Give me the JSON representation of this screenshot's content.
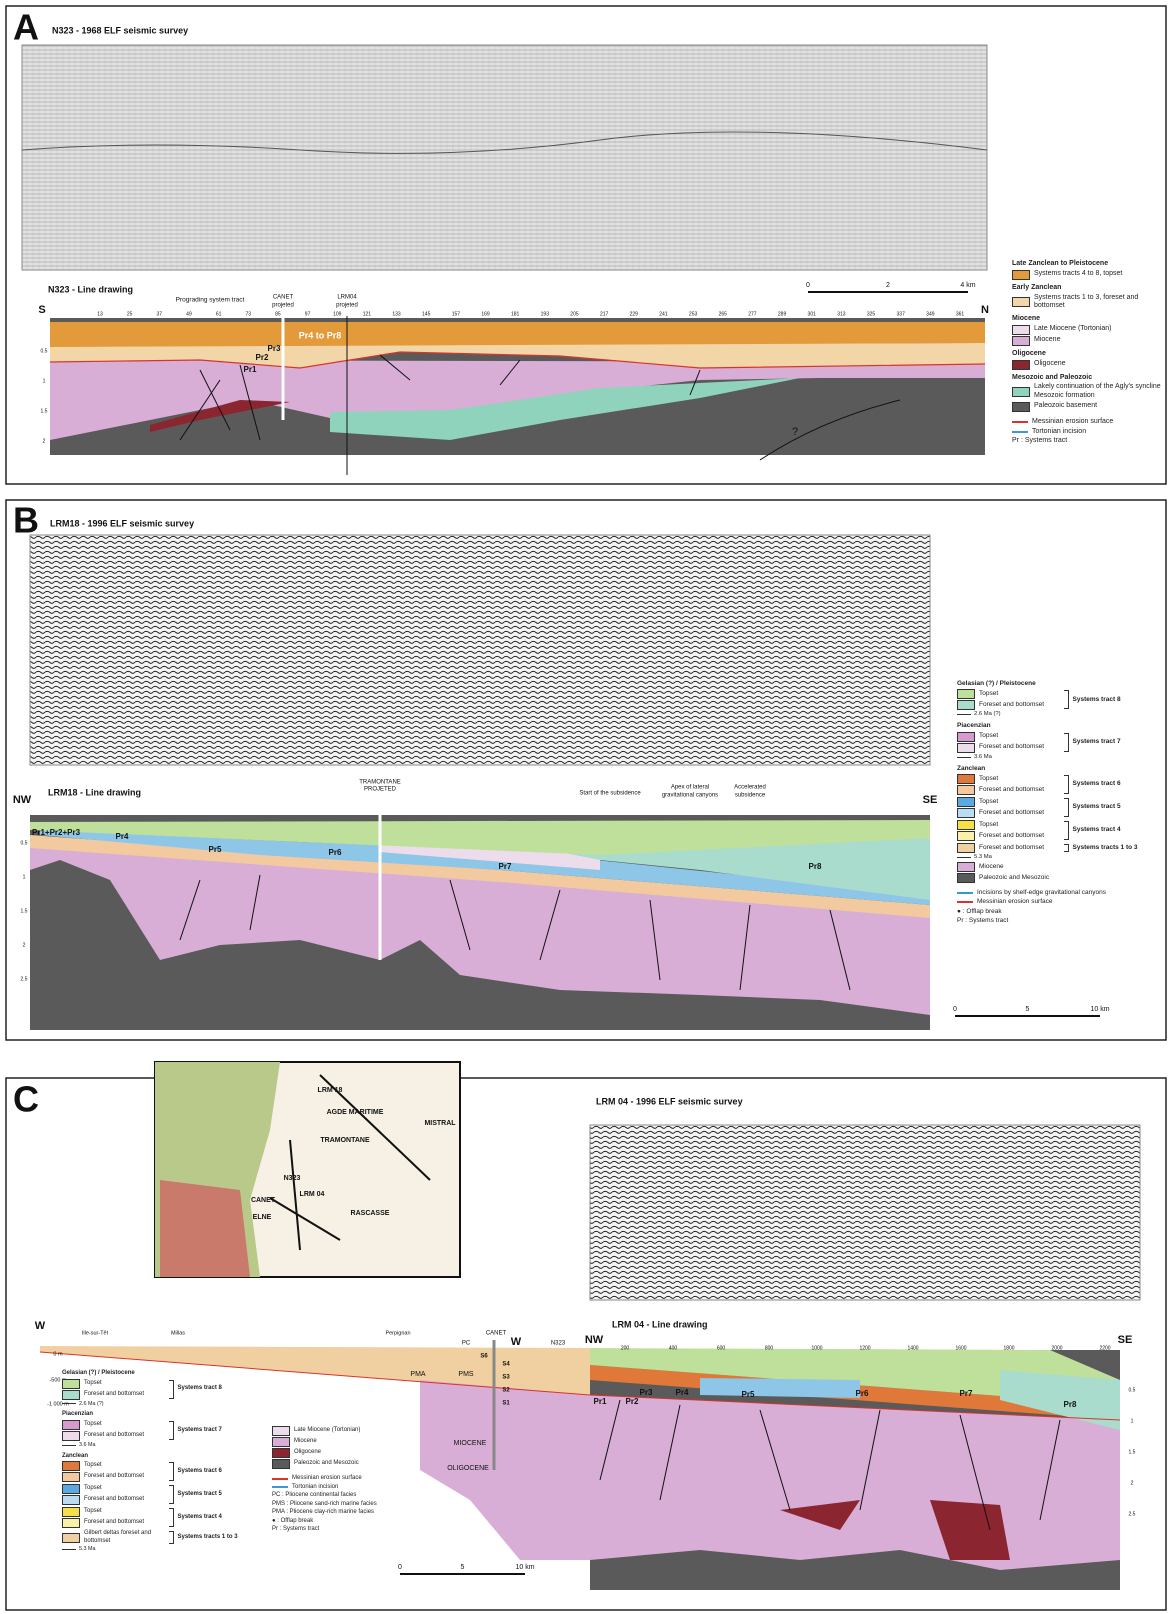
{
  "panels": [
    {
      "letter": "A",
      "seismic_title": "N323 - 1968 ELF seismic survey",
      "drawing_title": "N323 - Line drawing",
      "ends": [
        "S",
        "N"
      ],
      "annotations": [
        "Prograding system tract",
        "CANET",
        "projeted",
        "LRM04",
        "projeted",
        "Pr4 to Pr8",
        "Pr3",
        "Pr2",
        "Pr1",
        "?"
      ],
      "shotpoints": [
        "13",
        "25",
        "37",
        "49",
        "61",
        "73",
        "85",
        "97",
        "109",
        "121",
        "133",
        "145",
        "157",
        "169",
        "181",
        "193",
        "205",
        "217",
        "229",
        "241",
        "253",
        "265",
        "277",
        "289",
        "301",
        "313",
        "325",
        "337",
        "349",
        "361"
      ],
      "depths": [
        "0.5",
        "1",
        "1.5",
        "2"
      ],
      "scale": [
        "0",
        "2",
        "4 km"
      ],
      "legend": {
        "groups": [
          {
            "heading": "Late Zanclean to Pleistocene",
            "items": [
              {
                "label": "Systems tracts 4 to 8, topset",
                "color": "#e39a3b"
              }
            ]
          },
          {
            "heading": "Early Zanclean",
            "items": [
              {
                "label": "Systems tracts 1 to 3, foreset and bottomset",
                "color": "#f3d6a8"
              }
            ]
          },
          {
            "heading": "Miocene",
            "items": [
              {
                "label": "Late Miocene (Tortonian)",
                "color": "#ecdcec"
              },
              {
                "label": "Miocene",
                "color": "#d8aed6"
              }
            ]
          },
          {
            "heading": "Oligocene",
            "items": [
              {
                "label": "Oligocene",
                "color": "#8b2530"
              }
            ]
          },
          {
            "heading": "Mesozoic and Paleozoic",
            "items": [
              {
                "label": "Lakely continuation of the Agly's syncline Mesozoic formation",
                "color": "#8fd3bd"
              },
              {
                "label": "Paleozoic basement",
                "color": "#5a5a5a"
              }
            ]
          }
        ],
        "notes": [
          {
            "label": "Messinian erosion surface",
            "color": "#d9342b"
          },
          {
            "label": "Tortonian incision",
            "color": "#3a9ad9"
          },
          {
            "label": "Pr : Systems tract"
          }
        ]
      }
    },
    {
      "letter": "B",
      "seismic_title": "LRM18 - 1996  ELF seismic survey",
      "drawing_title": "LRM18 - Line drawing",
      "ends": [
        "NW",
        "SE"
      ],
      "annotations": [
        "TRAMONTANE",
        "PROJETED",
        "Start of the subsidence",
        "Apex of lateral",
        "gravitational canyons",
        "Accelerated",
        "subsidence",
        "Pr1+Pr2+Pr3",
        "Pr4",
        "Pr5",
        "Pr6",
        "Pr7",
        "Pr8"
      ],
      "depths": [
        "0.5",
        "1",
        "1.5",
        "2",
        "2.5"
      ],
      "scale": [
        "0",
        "5",
        "10 km"
      ],
      "legend": {
        "groups": [
          {
            "heading": "Gelasian (?) / Pleistocene",
            "tracts": [
              {
                "name": "Systems tract 8",
                "items": [
                  {
                    "label": "Topset",
                    "color": "#bfe09a"
                  },
                  {
                    "label": "Foreset and bottomset",
                    "color": "#a9dccd"
                  }
                ]
              }
            ],
            "age": "2.6 Ma (?)"
          },
          {
            "heading": "Piacenzian",
            "tracts": [
              {
                "name": "Systems tract 7",
                "items": [
                  {
                    "label": "Topset",
                    "color": "#d79ad0"
                  },
                  {
                    "label": "Foreset and bottomset",
                    "color": "#ecdcec"
                  }
                ]
              }
            ],
            "age": "3.6 Ma"
          },
          {
            "heading": "Zanclean",
            "tracts": [
              {
                "name": "Systems tract 6",
                "items": [
                  {
                    "label": "Topset",
                    "color": "#e0783a"
                  },
                  {
                    "label": "Foreset and bottomset",
                    "color": "#f3c9a0"
                  }
                ]
              },
              {
                "name": "Systems tract 5",
                "items": [
                  {
                    "label": "Topset",
                    "color": "#5aa9e0"
                  },
                  {
                    "label": "Foreset and bottomset",
                    "color": "#b9dcf2"
                  }
                ]
              },
              {
                "name": "Systems tract 4",
                "items": [
                  {
                    "label": "Topset",
                    "color": "#f5e04a"
                  },
                  {
                    "label": "Foreset and bottomset",
                    "color": "#faf0a8"
                  }
                ]
              },
              {
                "name": "Systems tracts 1 to 3",
                "items": [
                  {
                    "label": "Foreset and bottomset",
                    "color": "#f0cfa0"
                  }
                ]
              }
            ],
            "age": "5.3 Ma"
          },
          {
            "items": [
              {
                "label": "Miocene",
                "color": "#d8aed6"
              }
            ]
          },
          {
            "items": [
              {
                "label": "Paleozoic and Mesozoic",
                "color": "#5a5a5a"
              }
            ]
          }
        ],
        "notes": [
          {
            "label": "Incisions by shelf-edge gravitational canyons",
            "color": "#2aa0c8"
          },
          {
            "label": "Messinian erosion surface",
            "color": "#d9342b"
          },
          {
            "label": "● : Offlap break"
          },
          {
            "label": "Pr : Systems tract"
          }
        ]
      }
    },
    {
      "letter": "C",
      "seismic_title": "LRM 04 - 1996 ELF seismic survey",
      "drawing_title": "LRM 04 - Line drawing",
      "ends": [
        "W",
        "W",
        "NW",
        "SE"
      ],
      "map_labels": [
        "LRM 18",
        "AGDE MARITIME",
        "TRAMONTANE",
        "MISTRAL",
        "N323",
        "LRM 04",
        "CANET",
        "ELNE",
        "RASCASSE"
      ],
      "annotations": [
        "Ille-sur-Têt",
        "Millas",
        "Perpignan",
        "PC",
        "CANET",
        "N323",
        "0 m",
        "-500 m",
        "-1 000 m",
        "PMA",
        "PMS",
        "S6",
        "S4",
        "S3",
        "S2",
        "S1",
        "MIOCENE",
        "OLIGOCENE",
        "Pr1",
        "Pr2",
        "Pr3",
        "Pr4",
        "Pr5",
        "Pr6",
        "Pr7",
        "Pr8"
      ],
      "distances": [
        "200",
        "400",
        "600",
        "800",
        "1000",
        "1200",
        "1400",
        "1600",
        "1800",
        "2000",
        "2200"
      ],
      "depths": [
        "0.5",
        "1",
        "1.5",
        "2",
        "2.5"
      ],
      "scale": [
        "0",
        "5",
        "10 km"
      ],
      "legend": {
        "groups": [
          {
            "heading": "Gelasian (?) / Pleistocene",
            "tracts": [
              {
                "name": "Systems tract 8",
                "items": [
                  {
                    "label": "Topset",
                    "color": "#bfe09a"
                  },
                  {
                    "label": "Foreset and bottomset",
                    "color": "#a9dccd"
                  }
                ]
              }
            ],
            "age": "2.6 Ma (?)"
          },
          {
            "heading": "Piacenzian",
            "tracts": [
              {
                "name": "Systems tract 7",
                "items": [
                  {
                    "label": "Topset",
                    "color": "#d79ad0"
                  },
                  {
                    "label": "Foreset and bottomset",
                    "color": "#ecdcec"
                  }
                ]
              }
            ],
            "age": "3.6 Ma"
          },
          {
            "heading": "Zanclean",
            "tracts": [
              {
                "name": "Systems tract 6",
                "items": [
                  {
                    "label": "Topset",
                    "color": "#e0783a"
                  },
                  {
                    "label": "Foreset and bottomset",
                    "color": "#f3c9a0"
                  }
                ]
              },
              {
                "name": "Systems tract 5",
                "items": [
                  {
                    "label": "Topset",
                    "color": "#5aa9e0"
                  },
                  {
                    "label": "Foreset and bottomset",
                    "color": "#b9dcf2"
                  }
                ]
              },
              {
                "name": "Systems tract 4",
                "items": [
                  {
                    "label": "Topset",
                    "color": "#f5e04a"
                  },
                  {
                    "label": "Foreset and bottomset",
                    "color": "#faf0a8"
                  }
                ]
              },
              {
                "name": "Systems tracts 1 to 3",
                "items": [
                  {
                    "label": "Gilbert deltas foreset and bottomset",
                    "color": "#f0cfa0"
                  }
                ]
              }
            ],
            "age": "5.3 Ma"
          }
        ]
      },
      "legend2": {
        "groups": [
          {
            "items": [
              {
                "label": "Late Miocene (Tortonian)",
                "color": "#ecdcec"
              },
              {
                "label": "Miocene",
                "color": "#d8aed6"
              },
              {
                "label": "Oligocene",
                "color": "#8b2530"
              },
              {
                "label": "Paleozoic and Mesozoic",
                "color": "#5a5a5a"
              }
            ]
          }
        ],
        "notes": [
          {
            "label": "Messinian erosion surface",
            "color": "#d9342b"
          },
          {
            "label": "Tortonian incision",
            "color": "#3a9ad9"
          },
          {
            "label": "PC : Pliocene continental facies"
          },
          {
            "label": "PMS : Pliocene sand-rich marine facies"
          },
          {
            "label": "PMA : Pliocene clay-rich marine facies"
          },
          {
            "label": "● : Offlap break"
          },
          {
            "label": "Pr : Systems tract"
          }
        ]
      }
    }
  ]
}
